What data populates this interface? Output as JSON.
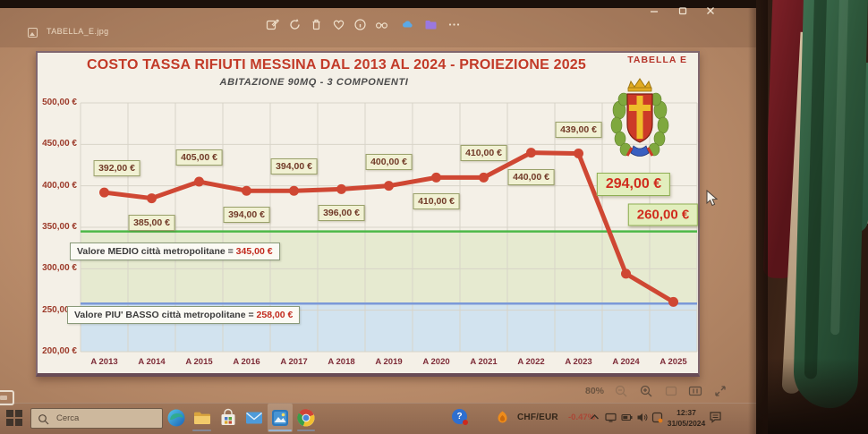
{
  "photos_app": {
    "filename": "TABELLA_E.jpg",
    "zoom_level": "80%",
    "toolbar_icons": [
      "edit",
      "rotate",
      "delete",
      "favorite",
      "info",
      "glasses",
      "onedrive",
      "folder",
      "more-options"
    ],
    "window_control_icons": [
      "minimize",
      "maximize",
      "close"
    ]
  },
  "chart": {
    "corner_label": "TABELLA E"
  },
  "chart_data": {
    "type": "line",
    "title": "COSTO TASSA RIFIUTI MESSINA DAL 2013 AL 2024 - PROIEZIONE 2025",
    "subtitle": "ABITAZIONE 90MQ - 3 COMPONENTI",
    "categories": [
      "A 2013",
      "A 2014",
      "A 2015",
      "A 2016",
      "A 2017",
      "A 2018",
      "A 2019",
      "A 2020",
      "A 2021",
      "A 2022",
      "A 2023",
      "A 2024",
      "A 2025"
    ],
    "values": [
      392,
      385,
      405,
      394,
      394,
      396,
      400,
      410,
      410,
      440,
      439,
      294,
      260
    ],
    "point_labels": [
      "392,00 €",
      "385,00 €",
      "405,00 €",
      "394,00 €",
      "394,00 €",
      "396,00 €",
      "400,00 €",
      "410,00 €",
      "410,00 €",
      "440,00 €",
      "439,00 €",
      null,
      null
    ],
    "label_placement": [
      "above",
      "below",
      "above",
      "below",
      "above",
      "below",
      "above",
      "below",
      "above",
      "below",
      "above",
      null,
      null
    ],
    "projection_callouts": [
      "294,00 €",
      "260,00 €"
    ],
    "ylim": [
      200,
      500
    ],
    "ytick_labels": [
      "500,00 €",
      "450,00 €",
      "400,00 €",
      "350,00 €",
      "300,00 €",
      "250,00 €",
      "200,00 €"
    ],
    "grid": true,
    "legend": "none",
    "line_color": "#cf4733",
    "reference_lines": [
      {
        "name": "medio",
        "label": "Valore MEDIO città metropolitane =",
        "value": 345,
        "value_label": "345,00 €",
        "line_color": "#4cb847",
        "band_color": "#e6ead0"
      },
      {
        "name": "piu_basso",
        "label": "Valore PIU' BASSO città metropolitane =",
        "value": 258,
        "value_label": "258,00 €",
        "line_color": "#7b99d8",
        "band_color": "#d2e3ef"
      }
    ]
  },
  "taskbar": {
    "search_placeholder": "Cerca",
    "app_icons": [
      "edge",
      "file-explorer",
      "store",
      "mail",
      "photos",
      "chrome"
    ],
    "ticker_pair": "CHF/EUR",
    "ticker_change": "-0.47%",
    "clock_time": "12:37",
    "clock_date": "31/05/2024"
  }
}
